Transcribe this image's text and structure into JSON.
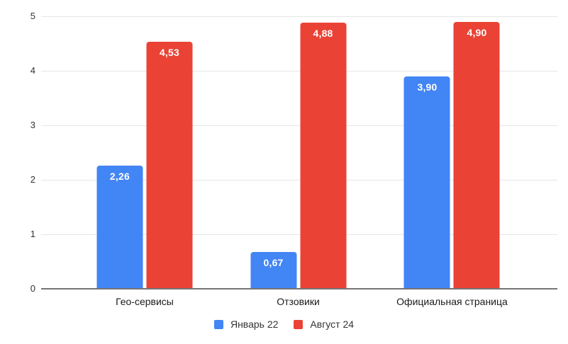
{
  "chart_data": {
    "type": "bar",
    "categories": [
      "Гео-сервисы",
      "Отзовики",
      "Официальная страница"
    ],
    "series": [
      {
        "name": "Январь 22",
        "color": "#4285F4",
        "values": [
          2.26,
          0.67,
          3.9
        ],
        "value_labels": [
          "2,26",
          "0,67",
          "3,90"
        ]
      },
      {
        "name": "Август 24",
        "color": "#EA4335",
        "values": [
          4.53,
          4.88,
          4.9
        ],
        "value_labels": [
          "4,53",
          "4,88",
          "4,90"
        ]
      }
    ],
    "title": "",
    "xlabel": "",
    "ylabel": "",
    "ylim": [
      0,
      5
    ],
    "yticks": [
      "0",
      "1",
      "2",
      "3",
      "4",
      "5"
    ],
    "grid": true,
    "legend_position": "bottom",
    "decimal_separator": ","
  },
  "colors": {
    "background": "#ffffff",
    "gridline": "#e6e6e6",
    "axis_line": "#757575",
    "tick_text": "#333333",
    "category_text": "#1a1a1a",
    "legend_text": "#333333",
    "value_label_text": "#ffffff"
  }
}
